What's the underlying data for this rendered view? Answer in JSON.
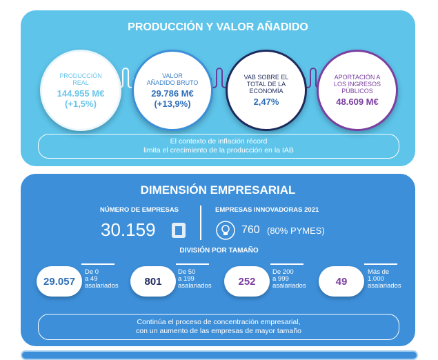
{
  "production": {
    "title": "PRODUCCIÓN Y VALOR AÑADIDO",
    "circles": [
      {
        "label": [
          "PRODUCCIÓN",
          "REAL"
        ],
        "value": "144.955 M€",
        "change": "(+1,5%)"
      },
      {
        "label": [
          "VALOR",
          "AÑADIDO BRUTO"
        ],
        "value": "29.786 M€",
        "change": "(+13,9%)"
      },
      {
        "label": [
          "VAB SOBRE EL",
          "TOTAL DE LA",
          "ECONOMÍA"
        ],
        "value": "2,47%"
      },
      {
        "label": [
          "APORTACIÓN A",
          "LOS INGRESOS",
          "PÚBLICOS"
        ],
        "value": "48.609 M€"
      }
    ],
    "note": [
      "El contexto de inflación récord",
      "limita el crecimiento de la producción en la IAB"
    ]
  },
  "business": {
    "title": "DIMENSIÓN EMPRESARIAL",
    "companies_label": "NÚMERO DE EMPRESAS",
    "companies_value": "30.159",
    "innovative_label": "EMPRESAS INNOVADORAS 2021",
    "innovative_value": "760",
    "innovative_note": "(80% PYMES)",
    "size_title": "DIVISIÓN POR TAMAÑO",
    "sizes": [
      {
        "value": "29.057",
        "label": [
          "De 0",
          "a 49",
          "asalariados"
        ]
      },
      {
        "value": "801",
        "label": [
          "De 50",
          "a 199",
          "asalariados"
        ]
      },
      {
        "value": "252",
        "label": [
          "De 200",
          "a 999",
          "asalariados"
        ]
      },
      {
        "value": "49",
        "label": [
          "Más de",
          "1.000",
          "asalariados"
        ]
      }
    ],
    "note": [
      "Continúa el proceso de concentración empresarial,",
      "con un aumento de las empresas de mayor tamaño"
    ]
  }
}
